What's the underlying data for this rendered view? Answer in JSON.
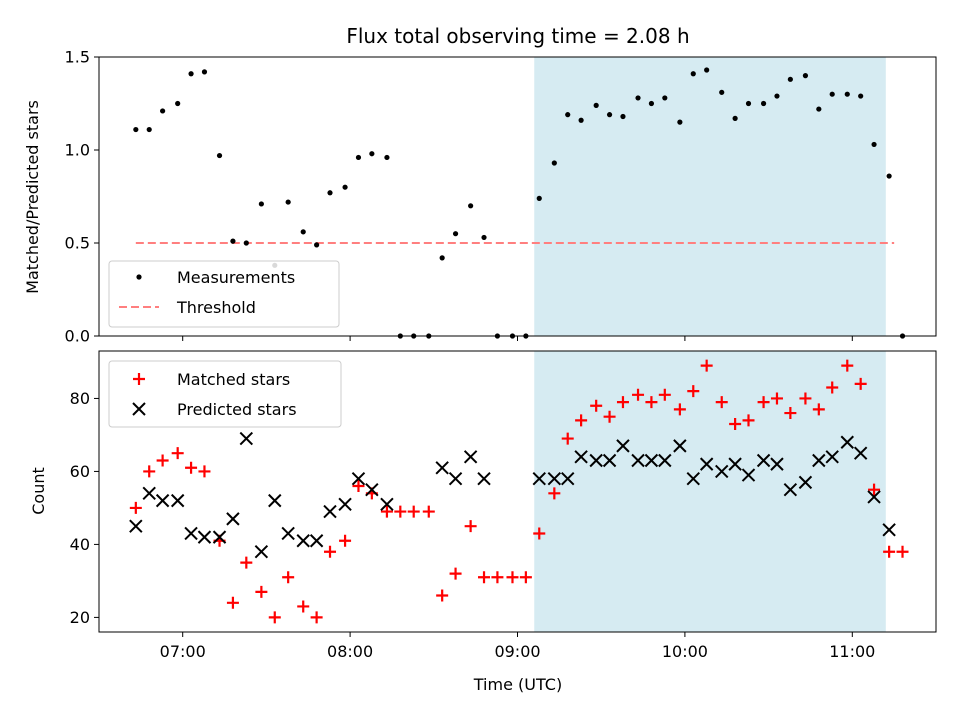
{
  "title": "Flux total observing time = 2.08 h",
  "colors": {
    "measurement": "#000000",
    "threshold": "#ff7f7f",
    "matched": "#ff0000",
    "predicted": "#000000",
    "shade": "#add8e6"
  },
  "chart_data": [
    {
      "type": "scatter",
      "ylabel": "Matched/Predicted stars",
      "xlabel": "",
      "ylim": [
        0,
        1.5
      ],
      "yticks": [
        "0.0",
        "0.5",
        "1.0",
        "1.5"
      ],
      "xlim_hours": [
        6.5,
        11.5
      ],
      "shaded_region_hours": [
        9.1,
        11.2
      ],
      "legend": {
        "placement": "lower-left",
        "entries": [
          "Measurements",
          "Threshold"
        ]
      },
      "threshold": {
        "name": "Threshold",
        "value": 0.5,
        "x_range_hours": [
          6.72,
          11.25
        ]
      },
      "series": [
        {
          "name": "Measurements",
          "marker": "dot",
          "points": [
            [
              6.72,
              1.11
            ],
            [
              6.8,
              1.11
            ],
            [
              6.88,
              1.21
            ],
            [
              6.97,
              1.25
            ],
            [
              7.05,
              1.41
            ],
            [
              7.13,
              1.42
            ],
            [
              7.22,
              0.97
            ],
            [
              7.3,
              0.51
            ],
            [
              7.38,
              0.5
            ],
            [
              7.47,
              0.71
            ],
            [
              7.55,
              0.38
            ],
            [
              7.63,
              0.72
            ],
            [
              7.72,
              0.56
            ],
            [
              7.8,
              0.49
            ],
            [
              7.88,
              0.77
            ],
            [
              7.97,
              0.8
            ],
            [
              8.05,
              0.96
            ],
            [
              8.13,
              0.98
            ],
            [
              8.22,
              0.96
            ],
            [
              8.3,
              0.0
            ],
            [
              8.38,
              0.0
            ],
            [
              8.47,
              0.0
            ],
            [
              8.55,
              0.42
            ],
            [
              8.63,
              0.55
            ],
            [
              8.72,
              0.7
            ],
            [
              8.8,
              0.53
            ],
            [
              8.88,
              0.0
            ],
            [
              8.97,
              0.0
            ],
            [
              9.05,
              0.0
            ],
            [
              9.13,
              0.74
            ],
            [
              9.22,
              0.93
            ],
            [
              9.3,
              1.19
            ],
            [
              9.38,
              1.16
            ],
            [
              9.47,
              1.24
            ],
            [
              9.55,
              1.19
            ],
            [
              9.63,
              1.18
            ],
            [
              9.72,
              1.28
            ],
            [
              9.8,
              1.25
            ],
            [
              9.88,
              1.28
            ],
            [
              9.97,
              1.15
            ],
            [
              10.05,
              1.41
            ],
            [
              10.13,
              1.43
            ],
            [
              10.22,
              1.31
            ],
            [
              10.3,
              1.17
            ],
            [
              10.38,
              1.25
            ],
            [
              10.47,
              1.25
            ],
            [
              10.55,
              1.29
            ],
            [
              10.63,
              1.38
            ],
            [
              10.72,
              1.4
            ],
            [
              10.8,
              1.22
            ],
            [
              10.88,
              1.3
            ],
            [
              10.97,
              1.3
            ],
            [
              11.05,
              1.29
            ],
            [
              11.13,
              1.03
            ],
            [
              11.22,
              0.86
            ],
            [
              11.3,
              0.0
            ]
          ]
        }
      ]
    },
    {
      "type": "scatter",
      "ylabel": "Count",
      "xlabel": "Time (UTC)",
      "ylim": [
        16,
        93
      ],
      "yticks": [
        "20",
        "40",
        "60",
        "80"
      ],
      "xticks": [
        "07:00",
        "08:00",
        "09:00",
        "10:00",
        "11:00"
      ],
      "xlim_hours": [
        6.5,
        11.5
      ],
      "shaded_region_hours": [
        9.1,
        11.2
      ],
      "legend": {
        "placement": "upper-left",
        "entries": [
          "Matched stars",
          "Predicted stars"
        ]
      },
      "series": [
        {
          "name": "Matched stars",
          "marker": "plus",
          "points": [
            [
              6.72,
              50
            ],
            [
              6.8,
              60
            ],
            [
              6.88,
              63
            ],
            [
              6.97,
              65
            ],
            [
              7.05,
              61
            ],
            [
              7.13,
              60
            ],
            [
              7.22,
              41
            ],
            [
              7.3,
              24
            ],
            [
              7.38,
              35
            ],
            [
              7.47,
              27
            ],
            [
              7.55,
              20
            ],
            [
              7.63,
              31
            ],
            [
              7.72,
              23
            ],
            [
              7.8,
              20
            ],
            [
              7.88,
              38
            ],
            [
              7.97,
              41
            ],
            [
              8.05,
              56
            ],
            [
              8.13,
              54
            ],
            [
              8.22,
              49
            ],
            [
              8.3,
              49
            ],
            [
              8.38,
              49
            ],
            [
              8.47,
              49
            ],
            [
              8.55,
              26
            ],
            [
              8.63,
              32
            ],
            [
              8.72,
              45
            ],
            [
              8.8,
              31
            ],
            [
              8.88,
              31
            ],
            [
              8.97,
              31
            ],
            [
              9.05,
              31
            ],
            [
              9.13,
              43
            ],
            [
              9.22,
              54
            ],
            [
              9.3,
              69
            ],
            [
              9.38,
              74
            ],
            [
              9.47,
              78
            ],
            [
              9.55,
              75
            ],
            [
              9.63,
              79
            ],
            [
              9.72,
              81
            ],
            [
              9.8,
              79
            ],
            [
              9.88,
              81
            ],
            [
              9.97,
              77
            ],
            [
              10.05,
              82
            ],
            [
              10.13,
              89
            ],
            [
              10.22,
              79
            ],
            [
              10.3,
              73
            ],
            [
              10.38,
              74
            ],
            [
              10.47,
              79
            ],
            [
              10.55,
              80
            ],
            [
              10.63,
              76
            ],
            [
              10.72,
              80
            ],
            [
              10.8,
              77
            ],
            [
              10.88,
              83
            ],
            [
              10.97,
              89
            ],
            [
              11.05,
              84
            ],
            [
              11.13,
              55
            ],
            [
              11.22,
              38
            ],
            [
              11.3,
              38
            ]
          ]
        },
        {
          "name": "Predicted stars",
          "marker": "x",
          "points": [
            [
              6.72,
              45
            ],
            [
              6.8,
              54
            ],
            [
              6.88,
              52
            ],
            [
              6.97,
              52
            ],
            [
              7.05,
              43
            ],
            [
              7.13,
              42
            ],
            [
              7.22,
              42
            ],
            [
              7.3,
              47
            ],
            [
              7.38,
              69
            ],
            [
              7.47,
              38
            ],
            [
              7.55,
              52
            ],
            [
              7.63,
              43
            ],
            [
              7.72,
              41
            ],
            [
              7.8,
              41
            ],
            [
              7.88,
              49
            ],
            [
              7.97,
              51
            ],
            [
              8.05,
              58
            ],
            [
              8.13,
              55
            ],
            [
              8.22,
              51
            ],
            [
              8.55,
              61
            ],
            [
              8.63,
              58
            ],
            [
              8.72,
              64
            ],
            [
              8.8,
              58
            ],
            [
              9.13,
              58
            ],
            [
              9.22,
              58
            ],
            [
              9.3,
              58
            ],
            [
              9.38,
              64
            ],
            [
              9.47,
              63
            ],
            [
              9.55,
              63
            ],
            [
              9.63,
              67
            ],
            [
              9.72,
              63
            ],
            [
              9.8,
              63
            ],
            [
              9.88,
              63
            ],
            [
              9.97,
              67
            ],
            [
              10.05,
              58
            ],
            [
              10.13,
              62
            ],
            [
              10.22,
              60
            ],
            [
              10.3,
              62
            ],
            [
              10.38,
              59
            ],
            [
              10.47,
              63
            ],
            [
              10.55,
              62
            ],
            [
              10.63,
              55
            ],
            [
              10.72,
              57
            ],
            [
              10.8,
              63
            ],
            [
              10.88,
              64
            ],
            [
              10.97,
              68
            ],
            [
              11.05,
              65
            ],
            [
              11.13,
              53
            ],
            [
              11.22,
              44
            ]
          ]
        }
      ]
    }
  ]
}
